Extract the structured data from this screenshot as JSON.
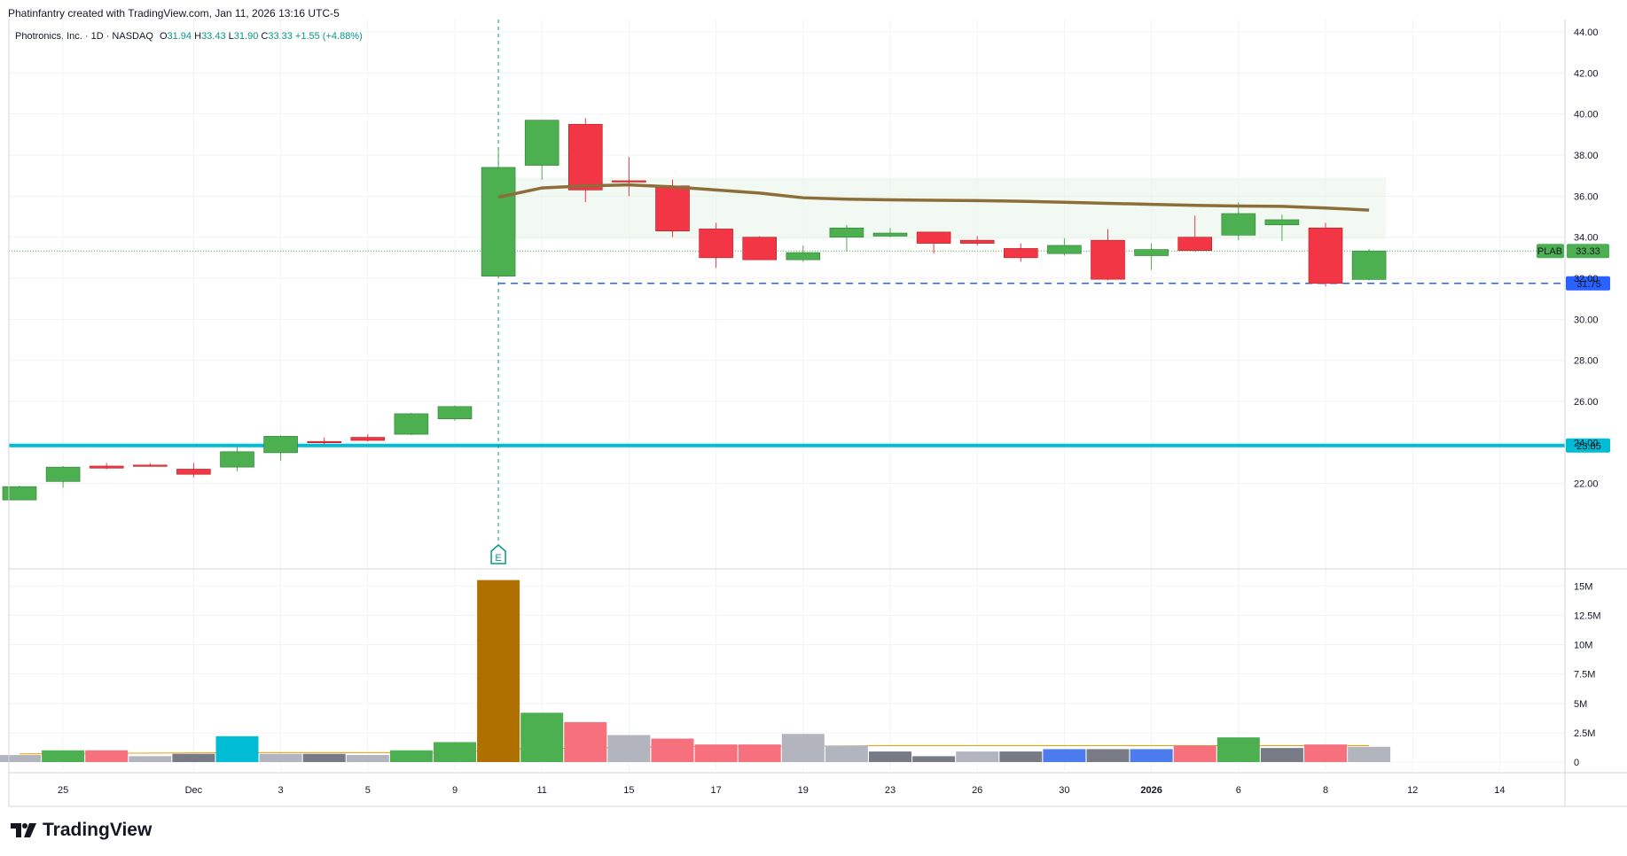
{
  "header": {
    "attribution": "Phatinfantry created with TradingView.com, Jan 11, 2026 13:16 UTC-5"
  },
  "legend": {
    "name": "Photronics, Inc. · 1D · NASDAQ",
    "open_label": "O",
    "open": "31.94",
    "high_label": "H",
    "high": "33.43",
    "low_label": "L",
    "low": "31.90",
    "close_label": "C",
    "close": "33.33",
    "change": "+1.55 (+4.88%)"
  },
  "brand": {
    "name": "TradingView"
  },
  "colors": {
    "up": "#4caf50",
    "down": "#f23645",
    "ma": "#8d6e3a",
    "band": "#e8f5e9",
    "support": "#00bcd4",
    "dashed": "#2962ff",
    "earnings": "#089981",
    "grid": "#f0f3fa"
  },
  "chart_data": {
    "type": "candlestick",
    "symbol": "PLAB",
    "price_axis": {
      "ylim": [
        20.0,
        44.0
      ],
      "ticks": [
        "44.00",
        "42.00",
        "40.00",
        "38.00",
        "36.00",
        "34.00",
        "32.00",
        "30.00",
        "28.00",
        "26.00",
        "24.00",
        "22.00"
      ]
    },
    "volume_axis": {
      "ylim": [
        0,
        16000000
      ],
      "ticks": [
        {
          "label": "15M",
          "v": 15000000
        },
        {
          "label": "12.5M",
          "v": 12500000
        },
        {
          "label": "10M",
          "v": 10000000
        },
        {
          "label": "7.5M",
          "v": 7500000
        },
        {
          "label": "5M",
          "v": 5000000
        },
        {
          "label": "2.5M",
          "v": 2500000
        },
        {
          "label": "0",
          "v": 0
        }
      ]
    },
    "x_ticks": [
      {
        "label": "25",
        "i": 1
      },
      {
        "label": "Dec",
        "i": 4
      },
      {
        "label": "3",
        "i": 6
      },
      {
        "label": "5",
        "i": 8
      },
      {
        "label": "9",
        "i": 10
      },
      {
        "label": "11",
        "i": 12
      },
      {
        "label": "15",
        "i": 14
      },
      {
        "label": "17",
        "i": 16
      },
      {
        "label": "19",
        "i": 18
      },
      {
        "label": "23",
        "i": 20
      },
      {
        "label": "26",
        "i": 22
      },
      {
        "label": "30",
        "i": 24
      },
      {
        "label": "2026",
        "i": 26,
        "bold": true
      },
      {
        "label": "6",
        "i": 28
      },
      {
        "label": "8",
        "i": 30
      },
      {
        "label": "12",
        "i": 32
      },
      {
        "label": "14",
        "i": 34
      }
    ],
    "candles": [
      {
        "o": 21.2,
        "h": 21.9,
        "l": 21.2,
        "c": 21.85,
        "v": 600000,
        "vc": "#b2b5be"
      },
      {
        "o": 22.1,
        "h": 22.85,
        "l": 21.8,
        "c": 22.8,
        "v": 1000000,
        "vc": "#4caf50"
      },
      {
        "o": 22.85,
        "h": 23.0,
        "l": 22.7,
        "c": 22.75,
        "v": 1000000,
        "vc": "#f7707d"
      },
      {
        "o": 22.9,
        "h": 23.0,
        "l": 22.85,
        "c": 22.85,
        "v": 500000,
        "vc": "#b2b5be"
      },
      {
        "o": 22.7,
        "h": 23.0,
        "l": 22.3,
        "c": 22.45,
        "v": 700000,
        "vc": "#787b86"
      },
      {
        "o": 22.8,
        "h": 23.8,
        "l": 22.6,
        "c": 23.55,
        "v": 2200000,
        "vc": "#00bcd4"
      },
      {
        "o": 23.5,
        "h": 24.35,
        "l": 23.1,
        "c": 24.3,
        "v": 700000,
        "vc": "#b2b5be"
      },
      {
        "o": 24.05,
        "h": 24.25,
        "l": 23.9,
        "c": 24.0,
        "v": 700000,
        "vc": "#787b86"
      },
      {
        "o": 24.25,
        "h": 24.4,
        "l": 24.05,
        "c": 24.1,
        "v": 600000,
        "vc": "#b2b5be"
      },
      {
        "o": 24.4,
        "h": 25.45,
        "l": 24.35,
        "c": 25.4,
        "v": 1000000,
        "vc": "#4caf50"
      },
      {
        "o": 25.15,
        "h": 25.8,
        "l": 25.05,
        "c": 25.75,
        "v": 1700000,
        "vc": "#4caf50"
      },
      {
        "o": 32.1,
        "h": 38.3,
        "l": 32.0,
        "c": 37.4,
        "v": 15500000,
        "vc": "#b07000"
      },
      {
        "o": 37.5,
        "h": 39.7,
        "l": 36.8,
        "c": 39.7,
        "v": 4200000,
        "vc": "#4caf50"
      },
      {
        "o": 39.5,
        "h": 39.8,
        "l": 35.7,
        "c": 36.3,
        "v": 3400000,
        "vc": "#f7707d"
      },
      {
        "o": 36.75,
        "h": 37.9,
        "l": 36.0,
        "c": 36.7,
        "v": 2300000,
        "vc": "#b2b5be"
      },
      {
        "o": 36.5,
        "h": 36.8,
        "l": 34.0,
        "c": 34.3,
        "v": 2000000,
        "vc": "#f7707d"
      },
      {
        "o": 34.4,
        "h": 34.7,
        "l": 32.5,
        "c": 33.0,
        "v": 1500000,
        "vc": "#f7707d"
      },
      {
        "o": 34.0,
        "h": 34.05,
        "l": 32.9,
        "c": 32.9,
        "v": 1500000,
        "vc": "#f7707d"
      },
      {
        "o": 32.9,
        "h": 33.6,
        "l": 32.8,
        "c": 33.25,
        "v": 2400000,
        "vc": "#b2b5be"
      },
      {
        "o": 34.0,
        "h": 34.6,
        "l": 33.3,
        "c": 34.45,
        "v": 1400000,
        "vc": "#b2b5be"
      },
      {
        "o": 34.05,
        "h": 34.45,
        "l": 34.0,
        "c": 34.2,
        "v": 900000,
        "vc": "#787b86"
      },
      {
        "o": 34.25,
        "h": 34.25,
        "l": 33.2,
        "c": 33.7,
        "v": 500000,
        "vc": "#787b86"
      },
      {
        "o": 33.85,
        "h": 34.05,
        "l": 33.6,
        "c": 33.7,
        "v": 900000,
        "vc": "#b2b5be"
      },
      {
        "o": 33.45,
        "h": 33.7,
        "l": 32.8,
        "c": 33.0,
        "v": 900000,
        "vc": "#787b86"
      },
      {
        "o": 33.2,
        "h": 33.95,
        "l": 33.1,
        "c": 33.6,
        "v": 1100000,
        "vc": "#4b7bec"
      },
      {
        "o": 33.85,
        "h": 34.4,
        "l": 31.9,
        "c": 31.95,
        "v": 1100000,
        "vc": "#787b86"
      },
      {
        "o": 33.1,
        "h": 33.7,
        "l": 32.4,
        "c": 33.4,
        "v": 1100000,
        "vc": "#4b7bec"
      },
      {
        "o": 34.0,
        "h": 35.05,
        "l": 33.3,
        "c": 33.35,
        "v": 1400000,
        "vc": "#f7707d"
      },
      {
        "o": 34.1,
        "h": 35.7,
        "l": 33.85,
        "c": 35.15,
        "v": 2100000,
        "vc": "#4caf50"
      },
      {
        "o": 34.6,
        "h": 35.1,
        "l": 33.8,
        "c": 34.85,
        "v": 1200000,
        "vc": "#787b86"
      },
      {
        "o": 34.45,
        "h": 34.7,
        "l": 31.6,
        "c": 31.75,
        "v": 1500000,
        "vc": "#f7707d"
      },
      {
        "o": 31.94,
        "h": 33.43,
        "l": 31.9,
        "c": 33.33,
        "v": 1300000,
        "vc": "#b2b5be"
      }
    ],
    "moving_average": [
      {
        "i": 11,
        "y": 35.95
      },
      {
        "i": 12,
        "y": 36.4
      },
      {
        "i": 13,
        "y": 36.5
      },
      {
        "i": 14,
        "y": 36.55
      },
      {
        "i": 15,
        "y": 36.45
      },
      {
        "i": 16,
        "y": 36.3
      },
      {
        "i": 17,
        "y": 36.15
      },
      {
        "i": 18,
        "y": 35.92
      },
      {
        "i": 19,
        "y": 35.85
      },
      {
        "i": 20,
        "y": 35.82
      },
      {
        "i": 21,
        "y": 35.8
      },
      {
        "i": 22,
        "y": 35.78
      },
      {
        "i": 23,
        "y": 35.75
      },
      {
        "i": 24,
        "y": 35.7
      },
      {
        "i": 25,
        "y": 35.65
      },
      {
        "i": 26,
        "y": 35.6
      },
      {
        "i": 27,
        "y": 35.55
      },
      {
        "i": 28,
        "y": 35.52
      },
      {
        "i": 29,
        "y": 35.5
      },
      {
        "i": 30,
        "y": 35.42
      },
      {
        "i": 31,
        "y": 35.32
      }
    ],
    "band": {
      "start": 11,
      "end": 31,
      "upper": 36.9,
      "lower": 33.9
    },
    "volume_ma": [
      {
        "i": 0,
        "v": 700000
      },
      {
        "i": 5,
        "v": 800000
      },
      {
        "i": 10,
        "v": 800000
      },
      {
        "i": 11,
        "v": 1100000
      },
      {
        "i": 15,
        "v": 1300000
      },
      {
        "i": 20,
        "v": 1400000
      },
      {
        "i": 25,
        "v": 1400000
      },
      {
        "i": 31,
        "v": 1400000
      }
    ],
    "levels": [
      {
        "label": "23.85",
        "value": 23.85,
        "style": "solid",
        "color": "#00bcd4"
      },
      {
        "label": "31.75",
        "value": 31.75,
        "style": "dashed",
        "color": "#2962ff",
        "start": 11
      }
    ],
    "last_price": {
      "symbol": "PLAB",
      "label": "33.33",
      "value": 33.33
    },
    "earnings": {
      "i": 11,
      "label": "E"
    }
  }
}
